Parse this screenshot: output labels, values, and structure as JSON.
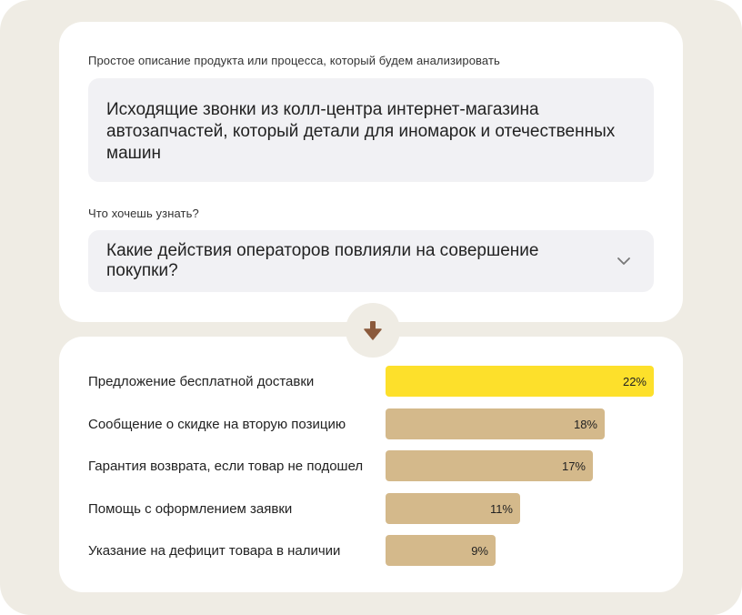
{
  "input": {
    "description_label": "Простое описание продукта или процесса, который будем анализировать",
    "description_text": "Исходящие звонки из колл-центра интернет-магазина автозапчастей, который детали для иномарок и отечественных машин",
    "question_label": "Что хочешь узнать?",
    "question_value": "Какие действия операторов повлияли на совершение покупки?"
  },
  "colors": {
    "highlight_bar": "#fde02b",
    "bar": "#d4b98b",
    "arrow": "#8b5a3c"
  },
  "chart_data": {
    "type": "bar",
    "orientation": "horizontal",
    "categories": [
      "Предложение бесплатной доставки",
      "Сообщение о скидке на вторую позицию",
      "Гарантия возврата, если товар не подошел",
      "Помощь с оформлением заявки",
      "Указание на дефицит товара в наличии"
    ],
    "values": [
      22,
      18,
      17,
      11,
      9
    ],
    "value_labels": [
      "22%",
      "18%",
      "17%",
      "11%",
      "9%"
    ],
    "highlight_index": 0
  }
}
